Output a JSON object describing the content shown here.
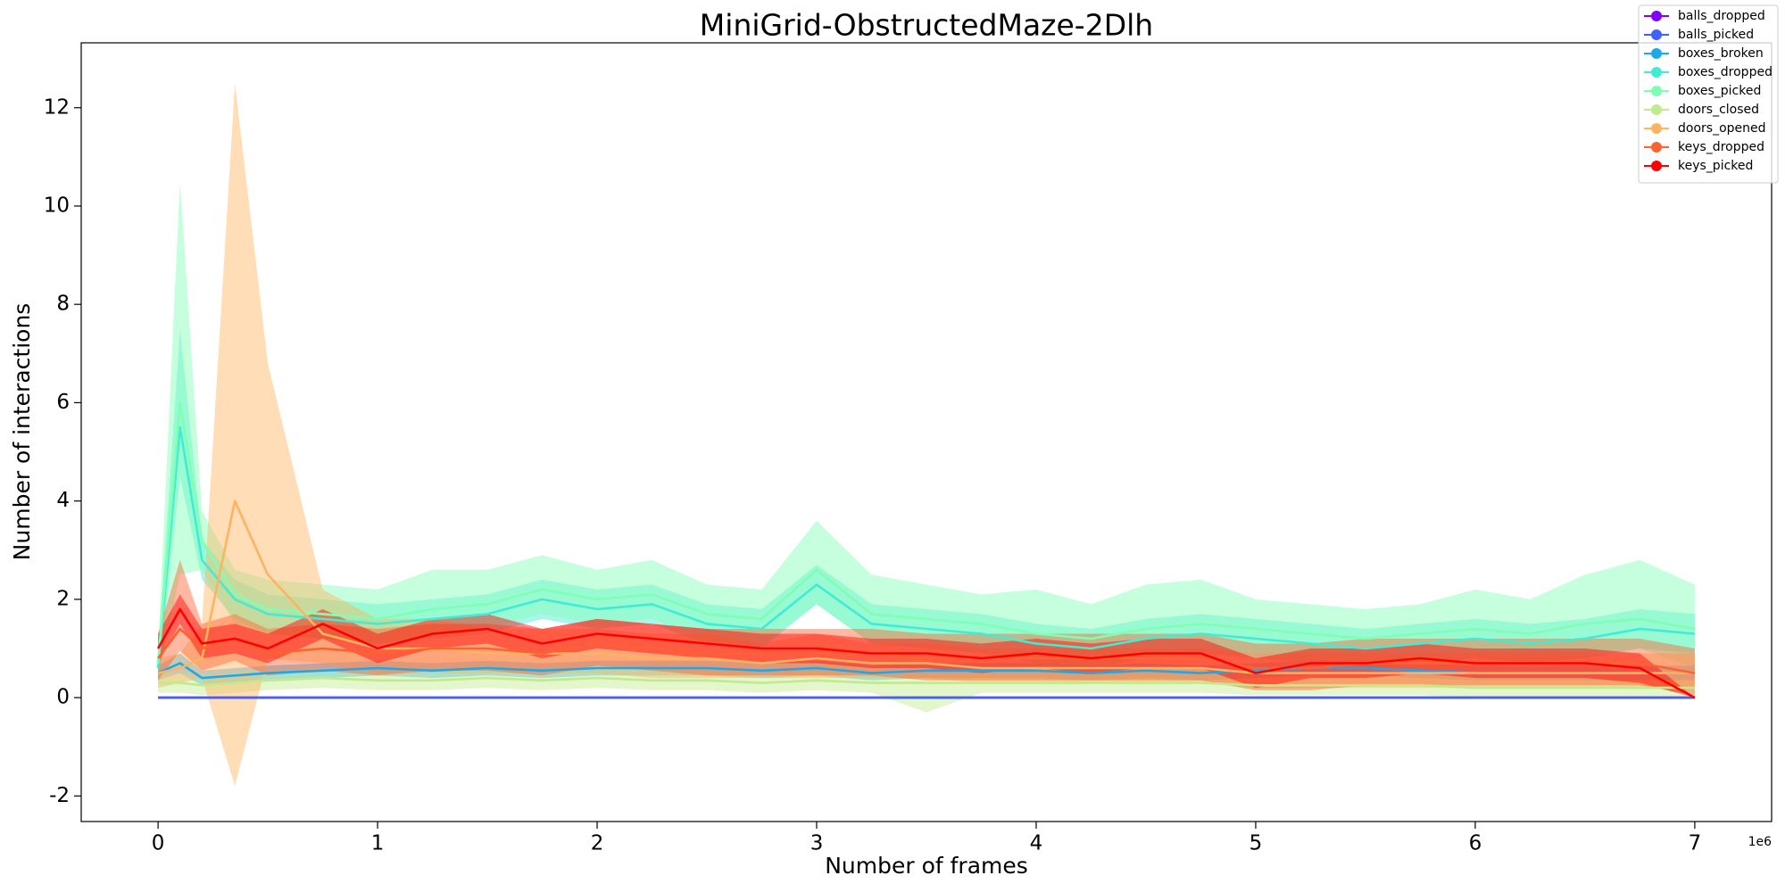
{
  "chart_data": {
    "type": "line",
    "title": "MiniGrid-ObstructedMaze-2Dlh",
    "x_label": "Number of frames",
    "y_label": "Number of interactions",
    "x_scale_label": "1e6",
    "x": [
      0,
      0.1,
      0.2,
      0.35,
      0.5,
      0.75,
      1,
      1.25,
      1.5,
      1.75,
      2,
      2.25,
      2.5,
      2.75,
      3,
      3.25,
      3.5,
      3.75,
      4,
      4.25,
      4.5,
      4.75,
      5,
      5.25,
      5.5,
      5.75,
      6,
      6.25,
      6.5,
      6.75,
      7
    ],
    "xlim": [
      -0.35,
      7.35
    ],
    "xticks": [
      0,
      1,
      2,
      3,
      4,
      5,
      6,
      7
    ],
    "ylim": [
      -2.52,
      13.32
    ],
    "yticks": [
      -2,
      0,
      2,
      4,
      6,
      8,
      10,
      12
    ],
    "legend": "upper right",
    "series": [
      {
        "name": "balls_dropped",
        "color": "#8000ff",
        "values": [
          0,
          0,
          0,
          0,
          0,
          0,
          0,
          0,
          0,
          0,
          0,
          0,
          0,
          0,
          0,
          0,
          0,
          0,
          0,
          0,
          0,
          0,
          0,
          0,
          0,
          0,
          0,
          0,
          0,
          0,
          0
        ]
      },
      {
        "name": "balls_picked",
        "color": "#4062fa",
        "values": [
          0,
          0,
          0,
          0,
          0,
          0,
          0,
          0,
          0,
          0,
          0,
          0,
          0,
          0,
          0,
          0,
          0,
          0,
          0,
          0,
          0,
          0,
          0,
          0,
          0,
          0,
          0,
          0,
          0,
          0,
          0
        ]
      },
      {
        "name": "boxes_broken",
        "color": "#1ca9ea",
        "values": [
          0.5,
          0.7,
          0.4,
          0.45,
          0.5,
          0.55,
          0.6,
          0.55,
          0.6,
          0.55,
          0.6,
          0.6,
          0.6,
          0.55,
          0.6,
          0.5,
          0.55,
          0.55,
          0.55,
          0.5,
          0.55,
          0.5,
          0.55,
          0.6,
          0.6,
          0.55,
          0.5,
          0.5,
          0.5,
          0.5,
          0.5
        ],
        "lower": [
          0.35,
          0.5,
          0.25,
          0.3,
          0.35,
          0.4,
          0.45,
          0.4,
          0.45,
          0.4,
          0.45,
          0.45,
          0.45,
          0.4,
          0.45,
          0.35,
          0.4,
          0.4,
          0.4,
          0.35,
          0.4,
          0.35,
          0.4,
          0.45,
          0.45,
          0.4,
          0.35,
          0.35,
          0.35,
          0.35,
          0.35
        ],
        "upper": [
          0.65,
          0.9,
          0.55,
          0.6,
          0.65,
          0.7,
          0.75,
          0.7,
          0.75,
          0.7,
          0.75,
          0.75,
          0.75,
          0.7,
          0.75,
          0.65,
          0.7,
          0.7,
          0.7,
          0.65,
          0.7,
          0.65,
          0.7,
          0.75,
          0.75,
          0.7,
          0.65,
          0.65,
          0.65,
          0.65,
          0.65
        ]
      },
      {
        "name": "boxes_dropped",
        "color": "#40ecd4",
        "values": [
          0.6,
          5.5,
          2.8,
          2.0,
          1.7,
          1.6,
          1.5,
          1.6,
          1.7,
          2.0,
          1.8,
          1.9,
          1.5,
          1.4,
          2.3,
          1.5,
          1.4,
          1.3,
          1.1,
          1.0,
          1.2,
          1.3,
          1.2,
          1.1,
          1.0,
          1.1,
          1.2,
          1.1,
          1.2,
          1.4,
          1.3
        ],
        "lower": [
          0.3,
          4.5,
          2.4,
          1.6,
          1.3,
          1.2,
          1.1,
          1.2,
          1.3,
          1.6,
          1.4,
          1.5,
          1.1,
          1.0,
          1.9,
          1.1,
          1.0,
          0.9,
          0.7,
          0.6,
          0.8,
          0.9,
          0.8,
          0.7,
          0.6,
          0.7,
          0.8,
          0.7,
          0.8,
          1.0,
          0.9
        ],
        "upper": [
          0.9,
          7.5,
          3.2,
          2.4,
          2.1,
          2.0,
          1.9,
          2.0,
          2.1,
          2.4,
          2.2,
          2.3,
          1.9,
          1.8,
          2.7,
          1.9,
          1.8,
          1.7,
          1.5,
          1.4,
          1.6,
          1.7,
          1.6,
          1.5,
          1.4,
          1.5,
          1.6,
          1.5,
          1.6,
          1.8,
          1.7
        ]
      },
      {
        "name": "boxes_picked",
        "color": "#80ffb4",
        "values": [
          0.7,
          6.0,
          3.2,
          2.1,
          1.8,
          1.7,
          1.6,
          1.8,
          1.9,
          2.2,
          2.0,
          2.1,
          1.7,
          1.6,
          2.6,
          1.7,
          1.6,
          1.5,
          1.3,
          1.2,
          1.4,
          1.5,
          1.4,
          1.3,
          1.2,
          1.3,
          1.4,
          1.3,
          1.5,
          1.6,
          1.4
        ],
        "lower": [
          0.4,
          2.5,
          2.6,
          1.5,
          1.3,
          1.2,
          1.1,
          1.3,
          1.4,
          1.7,
          1.5,
          1.6,
          1.2,
          1.1,
          1.9,
          1.1,
          1.1,
          1.0,
          0.8,
          0.7,
          0.9,
          1.0,
          0.9,
          0.8,
          0.7,
          0.8,
          0.9,
          0.8,
          0.9,
          1.0,
          0.6
        ],
        "upper": [
          1.0,
          10.5,
          3.8,
          2.6,
          2.4,
          2.3,
          2.2,
          2.6,
          2.6,
          2.9,
          2.6,
          2.8,
          2.3,
          2.2,
          3.6,
          2.5,
          2.3,
          2.1,
          2.2,
          1.9,
          2.3,
          2.4,
          2.0,
          1.9,
          1.8,
          1.9,
          2.2,
          2.0,
          2.5,
          2.8,
          2.3
        ]
      },
      {
        "name": "doors_closed",
        "color": "#c0eb8d",
        "values": [
          0.3,
          0.3,
          0.25,
          0.3,
          0.35,
          0.4,
          0.35,
          0.35,
          0.4,
          0.35,
          0.4,
          0.35,
          0.35,
          0.3,
          0.35,
          0.3,
          0.3,
          0.3,
          0.3,
          0.3,
          0.3,
          0.3,
          0.25,
          0.25,
          0.25,
          0.25,
          0.2,
          0.2,
          0.2,
          0.2,
          0.2
        ],
        "lower": [
          0.1,
          0.1,
          0.05,
          0.1,
          0.15,
          0.2,
          0.15,
          0.15,
          0.2,
          0.15,
          0.2,
          0.15,
          0.15,
          0.1,
          0.15,
          0.1,
          -0.3,
          0.1,
          0.1,
          0.1,
          0.1,
          0.1,
          0.05,
          0.05,
          0.05,
          0.05,
          0.0,
          0.0,
          0.0,
          0.0,
          0.0
        ],
        "upper": [
          0.5,
          0.5,
          0.45,
          0.5,
          0.55,
          0.6,
          0.55,
          0.55,
          0.6,
          0.55,
          0.6,
          0.55,
          0.55,
          0.5,
          0.55,
          0.5,
          0.5,
          0.5,
          0.5,
          0.5,
          0.5,
          0.5,
          0.45,
          0.45,
          0.45,
          0.45,
          0.4,
          0.4,
          0.4,
          0.4,
          0.4
        ]
      },
      {
        "name": "doors_opened",
        "color": "#ffb360",
        "values": [
          0.5,
          0.6,
          0.8,
          4.0,
          2.5,
          1.3,
          1.0,
          1.0,
          0.9,
          0.9,
          0.9,
          0.8,
          0.8,
          0.7,
          0.8,
          0.7,
          0.7,
          0.6,
          0.6,
          0.6,
          0.6,
          0.6,
          0.5,
          0.5,
          0.5,
          0.5,
          0.5,
          0.5,
          0.5,
          0.5,
          0.5
        ],
        "lower": [
          0.2,
          0.3,
          0.4,
          -1.8,
          0.8,
          0.7,
          0.5,
          0.5,
          0.5,
          0.5,
          0.5,
          0.4,
          0.4,
          0.4,
          0.4,
          0.4,
          0.4,
          0.3,
          0.3,
          0.3,
          0.3,
          0.3,
          0.2,
          0.2,
          0.2,
          0.2,
          0.2,
          0.2,
          0.2,
          0.2,
          0.2
        ],
        "upper": [
          0.8,
          0.9,
          1.5,
          12.5,
          6.8,
          2.2,
          1.6,
          1.6,
          1.4,
          1.4,
          1.4,
          1.3,
          1.3,
          1.1,
          1.3,
          1.1,
          1.1,
          1.0,
          1.0,
          1.0,
          1.0,
          1.0,
          0.9,
          0.9,
          0.9,
          0.9,
          0.9,
          0.9,
          0.9,
          0.9,
          0.9
        ]
      },
      {
        "name": "keys_dropped",
        "color": "#ff6230",
        "values": [
          0.8,
          1.4,
          1.0,
          1.2,
          0.9,
          1.0,
          0.9,
          1.0,
          1.0,
          0.9,
          1.1,
          1.0,
          0.9,
          0.9,
          0.9,
          0.9,
          0.8,
          0.8,
          0.8,
          0.8,
          0.8,
          0.8,
          0.6,
          0.6,
          0.7,
          0.7,
          0.7,
          0.7,
          0.7,
          0.7,
          0.5
        ],
        "lower": [
          0.35,
          0.95,
          0.55,
          0.75,
          0.45,
          0.55,
          0.45,
          0.55,
          0.55,
          0.45,
          0.65,
          0.55,
          0.45,
          0.45,
          0.45,
          0.45,
          0.35,
          0.35,
          0.35,
          0.35,
          0.35,
          0.35,
          0.15,
          0.15,
          0.25,
          0.25,
          0.25,
          0.25,
          0.25,
          0.25,
          0.05
        ],
        "upper": [
          1.3,
          2.8,
          1.5,
          1.7,
          1.4,
          1.5,
          1.4,
          1.5,
          1.5,
          1.4,
          1.6,
          1.5,
          1.4,
          1.4,
          1.4,
          1.4,
          1.3,
          1.3,
          1.3,
          1.3,
          1.3,
          1.3,
          1.1,
          1.1,
          1.2,
          1.2,
          1.2,
          1.2,
          1.2,
          1.2,
          1.0
        ]
      },
      {
        "name": "keys_picked",
        "color": "#ff0000",
        "values": [
          1.0,
          1.8,
          1.1,
          1.2,
          1.0,
          1.5,
          1.0,
          1.3,
          1.4,
          1.1,
          1.3,
          1.2,
          1.1,
          1.0,
          1.0,
          0.9,
          0.9,
          0.8,
          0.9,
          0.8,
          0.9,
          0.9,
          0.5,
          0.7,
          0.7,
          0.8,
          0.7,
          0.7,
          0.7,
          0.6,
          0.0
        ],
        "lower": [
          0.7,
          1.5,
          0.8,
          0.9,
          0.7,
          1.2,
          0.7,
          1.0,
          1.1,
          0.8,
          1.0,
          0.9,
          0.8,
          0.7,
          0.7,
          0.6,
          0.6,
          0.5,
          0.6,
          0.5,
          0.6,
          0.6,
          0.2,
          0.4,
          0.4,
          0.5,
          0.4,
          0.4,
          0.4,
          0.3,
          0.0
        ],
        "upper": [
          1.3,
          2.1,
          1.4,
          1.5,
          1.3,
          1.8,
          1.3,
          1.6,
          1.7,
          1.4,
          1.6,
          1.5,
          1.4,
          1.3,
          1.3,
          1.2,
          1.2,
          1.1,
          1.2,
          1.1,
          1.2,
          1.2,
          0.8,
          1.0,
          1.0,
          1.1,
          1.0,
          1.0,
          1.0,
          0.9,
          0.0
        ]
      }
    ]
  }
}
